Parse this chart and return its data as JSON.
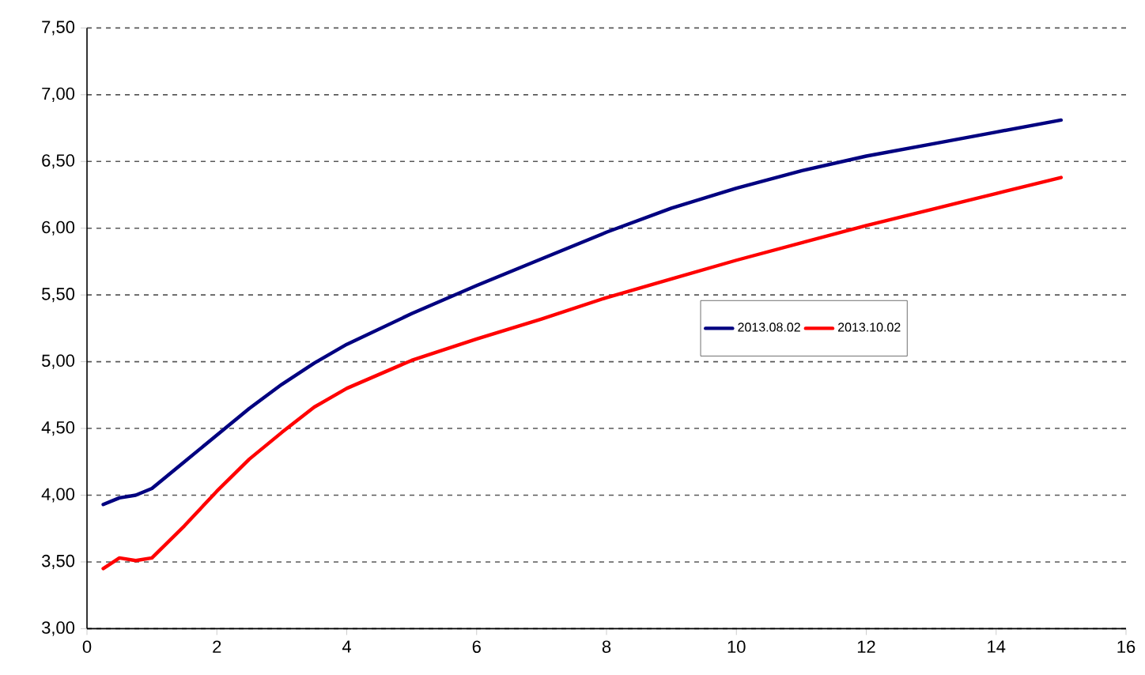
{
  "chart_data": {
    "type": "line",
    "x": [
      0.25,
      0.5,
      0.75,
      1,
      1.5,
      2,
      2.5,
      3,
      3.5,
      4,
      5,
      6,
      7,
      8,
      9,
      10,
      11,
      12,
      13,
      14,
      15
    ],
    "series": [
      {
        "name": "2013.08.02",
        "color": "#000080",
        "values": [
          3.93,
          3.98,
          4.0,
          4.05,
          4.25,
          4.45,
          4.65,
          4.83,
          4.99,
          5.13,
          5.36,
          5.57,
          5.77,
          5.97,
          6.15,
          6.3,
          6.43,
          6.54,
          6.63,
          6.72,
          6.81
        ]
      },
      {
        "name": "2013.10.02",
        "color": "#ff0000",
        "values": [
          3.45,
          3.53,
          3.51,
          3.53,
          3.77,
          4.03,
          4.27,
          4.47,
          4.66,
          4.8,
          5.01,
          5.17,
          5.32,
          5.48,
          5.62,
          5.76,
          5.89,
          6.02,
          6.14,
          6.26,
          6.38
        ]
      }
    ],
    "xlim": [
      0,
      16
    ],
    "xticks": [
      0,
      2,
      4,
      6,
      8,
      10,
      12,
      14,
      16
    ],
    "ylim": [
      3,
      7.5
    ],
    "yticks": [
      {
        "value": 3,
        "label": "3,00"
      },
      {
        "value": 3.5,
        "label": "3,50"
      },
      {
        "value": 4,
        "label": "4,00"
      },
      {
        "value": 4.5,
        "label": "4,50"
      },
      {
        "value": 5,
        "label": "5,00"
      },
      {
        "value": 5.5,
        "label": "5,50"
      },
      {
        "value": 6,
        "label": "6,00"
      },
      {
        "value": 6.5,
        "label": "6,50"
      },
      {
        "value": 7,
        "label": "7,00"
      },
      {
        "value": 7.5,
        "label": "7,50"
      }
    ],
    "grid": "y",
    "legend": "right",
    "marker": "none",
    "line_style": "solid"
  }
}
